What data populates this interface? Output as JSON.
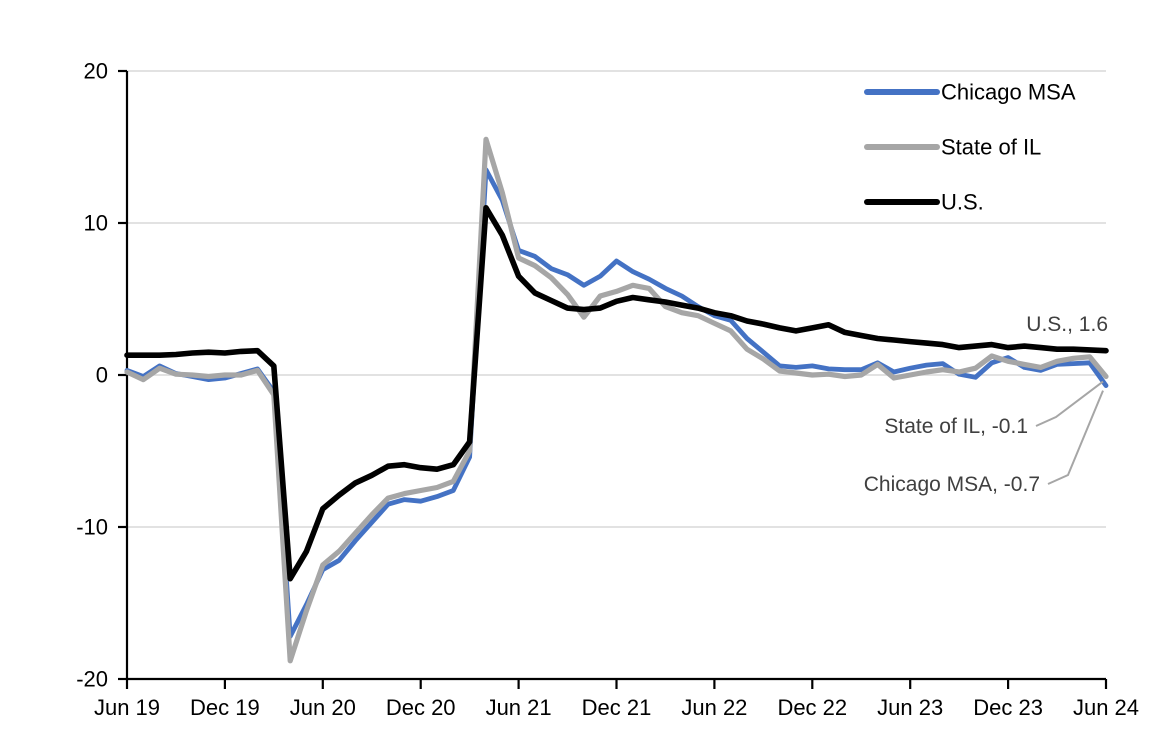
{
  "chart_data": {
    "type": "line",
    "title": "",
    "xlabel": "",
    "ylabel": "",
    "x_unit": "month",
    "x_range": [
      "Jun 19",
      "Jun 24"
    ],
    "x_tick_labels": [
      "Jun 19",
      "Dec 19",
      "Jun 20",
      "Dec 20",
      "Jun 21",
      "Dec 21",
      "Jun 22",
      "Dec 22",
      "Jun 23",
      "Dec 23",
      "Jun 24"
    ],
    "x_tick_interval_months": 6,
    "ylim": [
      -20,
      20
    ],
    "y_tick_labels": [
      "20",
      "10",
      "0",
      "-10",
      "-20"
    ],
    "y_ticks": [
      20,
      10,
      0,
      -10,
      -20
    ],
    "grid": true,
    "gridline_values": [
      20,
      10,
      0,
      -10
    ],
    "legend_position": "top-right",
    "series": [
      {
        "name": "Chicago MSA",
        "color": "#4472C4",
        "end_value": -0.7,
        "values": [
          0.3,
          -0.1,
          0.6,
          0.1,
          -0.1,
          -0.3,
          -0.2,
          0.1,
          0.4,
          -1.1,
          -17.2,
          -15.1,
          -12.8,
          -12.2,
          -10.9,
          -9.7,
          -8.5,
          -8.2,
          -8.3,
          -8.0,
          -7.6,
          -5.4,
          13.5,
          11.5,
          8.2,
          7.8,
          7.0,
          6.6,
          5.9,
          6.5,
          7.5,
          6.8,
          6.3,
          5.7,
          5.2,
          4.5,
          3.9,
          3.6,
          2.4,
          1.5,
          0.6,
          0.5,
          0.6,
          0.4,
          0.35,
          0.35,
          0.8,
          0.2,
          0.45,
          0.65,
          0.75,
          0.05,
          -0.15,
          0.8,
          1.15,
          0.5,
          0.3,
          0.7,
          0.75,
          0.8,
          -0.7
        ]
      },
      {
        "name": "State of IL",
        "color": "#A6A6A6",
        "end_value": -0.1,
        "values": [
          0.2,
          -0.3,
          0.45,
          0.05,
          0.0,
          -0.1,
          0.0,
          0.0,
          0.3,
          -1.3,
          -18.8,
          -15.5,
          -12.5,
          -11.6,
          -10.4,
          -9.2,
          -8.1,
          -7.8,
          -7.6,
          -7.4,
          -7.0,
          -5.0,
          15.5,
          12.0,
          7.7,
          7.2,
          6.4,
          5.3,
          3.8,
          5.2,
          5.5,
          5.9,
          5.7,
          4.5,
          4.1,
          3.9,
          3.4,
          2.9,
          1.7,
          1.05,
          0.26,
          0.13,
          0.0,
          0.05,
          -0.1,
          0.0,
          0.7,
          -0.2,
          0.0,
          0.2,
          0.35,
          0.2,
          0.45,
          1.25,
          0.9,
          0.7,
          0.5,
          0.9,
          1.1,
          1.2,
          -0.1
        ]
      },
      {
        "name": "U.S.",
        "color": "#000000",
        "end_value": 1.6,
        "values": [
          1.3,
          1.3,
          1.3,
          1.35,
          1.45,
          1.5,
          1.45,
          1.55,
          1.6,
          0.6,
          -13.4,
          -11.6,
          -8.8,
          -7.9,
          -7.1,
          -6.6,
          -6.0,
          -5.9,
          -6.1,
          -6.2,
          -5.9,
          -4.4,
          11.0,
          9.2,
          6.5,
          5.4,
          4.9,
          4.4,
          4.3,
          4.4,
          4.85,
          5.1,
          4.95,
          4.8,
          4.6,
          4.4,
          4.1,
          3.9,
          3.55,
          3.35,
          3.1,
          2.9,
          3.1,
          3.3,
          2.8,
          2.6,
          2.4,
          2.3,
          2.2,
          2.1,
          2.0,
          1.8,
          1.9,
          2.0,
          1.8,
          1.9,
          1.8,
          1.7,
          1.7,
          1.65,
          1.6
        ]
      }
    ],
    "legend": [
      "Chicago MSA",
      "State of IL",
      "U.S."
    ],
    "annotations": [
      {
        "text": "U.S., 1.6",
        "series": "U.S.",
        "leader": false
      },
      {
        "text": "State of IL, -0.1",
        "series": "State of IL",
        "leader": true
      },
      {
        "text": "Chicago MSA, -0.7",
        "series": "Chicago MSA",
        "leader": true
      }
    ]
  },
  "colors": {
    "background": "#FFFFFF",
    "gridline": "#D9D9D9",
    "axis": "#000000",
    "axis_text": "#000000",
    "annotation_text": "#404040",
    "leader_line": "#A6A6A6",
    "chicago_msa": "#4472C4",
    "state_of_il": "#A6A6A6",
    "us": "#000000"
  }
}
